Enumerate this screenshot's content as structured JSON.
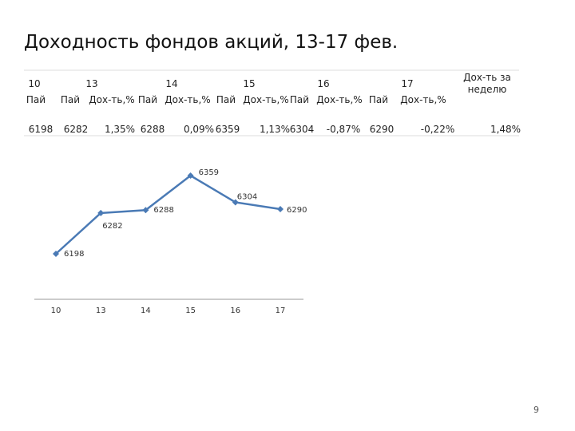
{
  "title": "Доходность фондов акций, 13-17 фев.",
  "table": {
    "header": [
      "10",
      "13",
      "14",
      "15",
      "16",
      "17",
      "Дох-ть за неделю"
    ],
    "subheader": [
      "Пай",
      "Пай",
      "Дох-ть,%",
      "Пай",
      "Дох-ть,%",
      "Пай",
      "Дох-ть,%",
      "Пай",
      "Дох-ть,%",
      "Пай",
      "Дох-ть,%"
    ],
    "row": [
      "6198",
      "6282",
      "1,35%",
      "6288",
      "0,09%",
      "6359",
      "1,13%",
      "6304",
      "-0,87%",
      "6290",
      "-0,22%",
      "1,48%"
    ]
  },
  "chart_data": {
    "type": "line",
    "categories": [
      "10",
      "13",
      "14",
      "15",
      "16",
      "17"
    ],
    "values": [
      6198,
      6282,
      6288,
      6359,
      6304,
      6290
    ],
    "color": "#4a7ab5"
  },
  "page_number": "9"
}
